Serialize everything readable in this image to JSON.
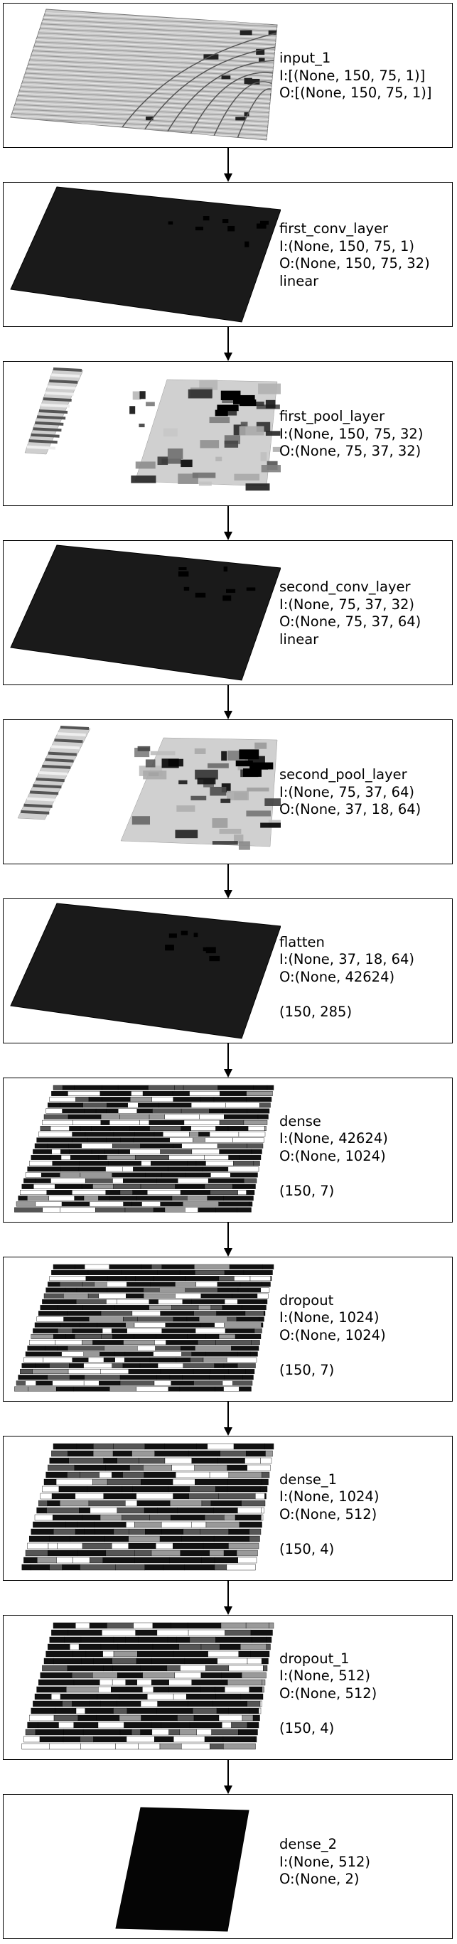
{
  "diagram": {
    "layers": [
      {
        "name": "input_1",
        "input": "I:[(None, 150, 75, 1)]",
        "output": "O:[(None, 150, 75, 1)]",
        "activation": "",
        "shape": "",
        "vis": "input"
      },
      {
        "name": "first_conv_layer",
        "input": "I:(None, 150, 75, 1)",
        "output": "O:(None, 150, 75, 32)",
        "activation": "linear",
        "shape": "",
        "vis": "dark"
      },
      {
        "name": "first_pool_layer",
        "input": "I:(None, 150, 75, 32)",
        "output": "O:(None, 75, 37, 32)",
        "activation": "",
        "shape": "",
        "vis": "pool"
      },
      {
        "name": "second_conv_layer",
        "input": "I:(None, 75, 37, 32)",
        "output": "O:(None, 75, 37, 64)",
        "activation": "linear",
        "shape": "",
        "vis": "dark"
      },
      {
        "name": "second_pool_layer",
        "input": "I:(None, 75, 37, 64)",
        "output": "O:(None, 37, 18, 64)",
        "activation": "",
        "shape": "",
        "vis": "pool2"
      },
      {
        "name": "flatten",
        "input": "I:(None, 37, 18, 64)",
        "output": "O:(None, 42624)",
        "activation": "",
        "shape": "(150, 285)",
        "vis": "dark"
      },
      {
        "name": "dense",
        "input": "I:(None, 42624)",
        "output": "O:(None, 1024)",
        "activation": "",
        "shape": "(150, 7)",
        "vis": "stripes"
      },
      {
        "name": "dropout",
        "input": "I:(None, 1024)",
        "output": "O:(None, 1024)",
        "activation": "",
        "shape": "(150, 7)",
        "vis": "stripes"
      },
      {
        "name": "dense_1",
        "input": "I:(None, 1024)",
        "output": "O:(None, 512)",
        "activation": "",
        "shape": "(150, 4)",
        "vis": "stripes2"
      },
      {
        "name": "dropout_1",
        "input": "I:(None, 512)",
        "output": "O:(None, 512)",
        "activation": "",
        "shape": "(150, 4)",
        "vis": "stripes2"
      },
      {
        "name": "dense_2",
        "input": "I:(None, 512)",
        "output": "O:(None, 2)",
        "activation": "",
        "shape": "",
        "vis": "solid"
      }
    ]
  }
}
